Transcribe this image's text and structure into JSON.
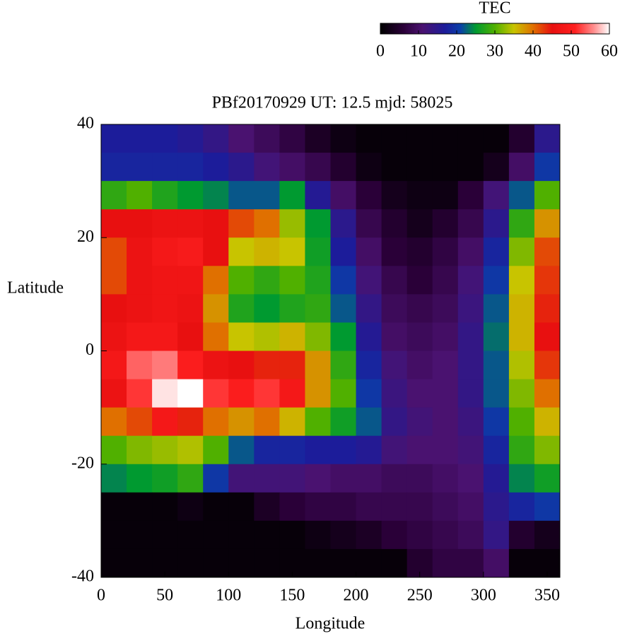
{
  "chart_data": {
    "type": "heatmap",
    "title": "PBf20170929  UT: 12.5  mjd: 58025",
    "x_label": "Longitude",
    "y_label": "Latitude",
    "xlim": [
      0,
      360
    ],
    "ylim": [
      -40,
      40
    ],
    "xticks": [
      0,
      50,
      100,
      150,
      200,
      250,
      300,
      350
    ],
    "yticks": [
      -40,
      -20,
      0,
      20,
      40
    ],
    "x": [
      10,
      30,
      50,
      70,
      90,
      110,
      130,
      150,
      170,
      190,
      210,
      230,
      250,
      270,
      290,
      310,
      330,
      350
    ],
    "y": [
      37.5,
      32.5,
      27.5,
      22.5,
      17.5,
      12.5,
      7.5,
      2.5,
      -2.5,
      -7.5,
      -12.5,
      -17.5,
      -22.5,
      -27.5,
      -32.5,
      -37.5
    ],
    "z": [
      [
        17,
        17,
        17,
        16,
        14,
        11,
        9,
        7,
        4,
        2,
        1,
        1,
        1,
        1,
        1,
        1,
        5,
        15
      ],
      [
        18,
        18,
        18,
        18,
        17,
        15,
        12,
        10,
        8,
        5,
        2,
        1,
        1,
        1,
        1,
        3,
        10,
        20
      ],
      [
        28,
        30,
        27,
        25,
        24,
        22,
        22,
        25,
        16,
        10,
        6,
        3,
        2,
        2,
        6,
        12,
        22,
        30
      ],
      [
        45,
        45,
        46,
        46,
        45,
        42,
        40,
        33,
        25,
        15,
        8,
        5,
        3,
        5,
        8,
        15,
        28,
        38
      ],
      [
        42,
        46,
        48,
        49,
        45,
        35,
        36,
        35,
        26,
        17,
        10,
        6,
        5,
        7,
        10,
        18,
        32,
        42
      ],
      [
        42,
        46,
        47,
        47,
        40,
        30,
        28,
        30,
        27,
        20,
        12,
        8,
        6,
        8,
        12,
        20,
        35,
        43
      ],
      [
        45,
        46,
        47,
        46,
        38,
        27,
        25,
        27,
        28,
        22,
        14,
        9,
        8,
        9,
        13,
        22,
        36,
        44
      ],
      [
        46,
        48,
        48,
        45,
        40,
        35,
        34,
        36,
        32,
        25,
        16,
        10,
        9,
        10,
        14,
        23,
        36,
        45
      ],
      [
        48,
        54,
        55,
        50,
        46,
        45,
        44,
        44,
        38,
        28,
        18,
        12,
        10,
        11,
        14,
        22,
        34,
        43
      ],
      [
        46,
        52,
        59,
        60,
        52,
        50,
        52,
        48,
        38,
        30,
        20,
        13,
        11,
        11,
        14,
        22,
        32,
        40
      ],
      [
        40,
        42,
        48,
        44,
        40,
        38,
        40,
        36,
        30,
        26,
        22,
        14,
        12,
        11,
        13,
        20,
        30,
        36
      ],
      [
        30,
        32,
        33,
        34,
        30,
        22,
        18,
        18,
        17,
        17,
        16,
        12,
        11,
        11,
        12,
        18,
        28,
        32
      ],
      [
        24,
        25,
        26,
        28,
        20,
        12,
        12,
        12,
        11,
        10,
        10,
        9,
        9,
        10,
        11,
        16,
        24,
        26
      ],
      [
        1,
        1,
        1,
        2,
        1,
        1,
        4,
        6,
        7,
        7,
        8,
        8,
        8,
        9,
        10,
        15,
        18,
        20
      ],
      [
        1,
        1,
        1,
        1,
        1,
        1,
        1,
        1,
        2,
        3,
        4,
        6,
        7,
        8,
        9,
        14,
        5,
        3
      ],
      [
        1,
        1,
        1,
        1,
        1,
        1,
        1,
        1,
        1,
        1,
        1,
        1,
        5,
        7,
        7,
        10,
        1,
        1
      ]
    ],
    "colorbar_title": "TEC",
    "colorbar_lim": [
      0,
      60
    ],
    "colorbar_ticks": [
      0,
      10,
      20,
      30,
      40,
      50,
      60
    ],
    "colorscale": [
      [
        0,
        "#000000"
      ],
      [
        6,
        "#2a0038"
      ],
      [
        11,
        "#4a1270"
      ],
      [
        17,
        "#1c1c9a"
      ],
      [
        21,
        "#0a40a8"
      ],
      [
        25,
        "#009a30"
      ],
      [
        30,
        "#50b000"
      ],
      [
        35,
        "#c8c400"
      ],
      [
        40,
        "#e07000"
      ],
      [
        45,
        "#e81010"
      ],
      [
        51,
        "#ff2020"
      ],
      [
        56,
        "#ff9090"
      ],
      [
        60,
        "#ffffff"
      ]
    ]
  }
}
